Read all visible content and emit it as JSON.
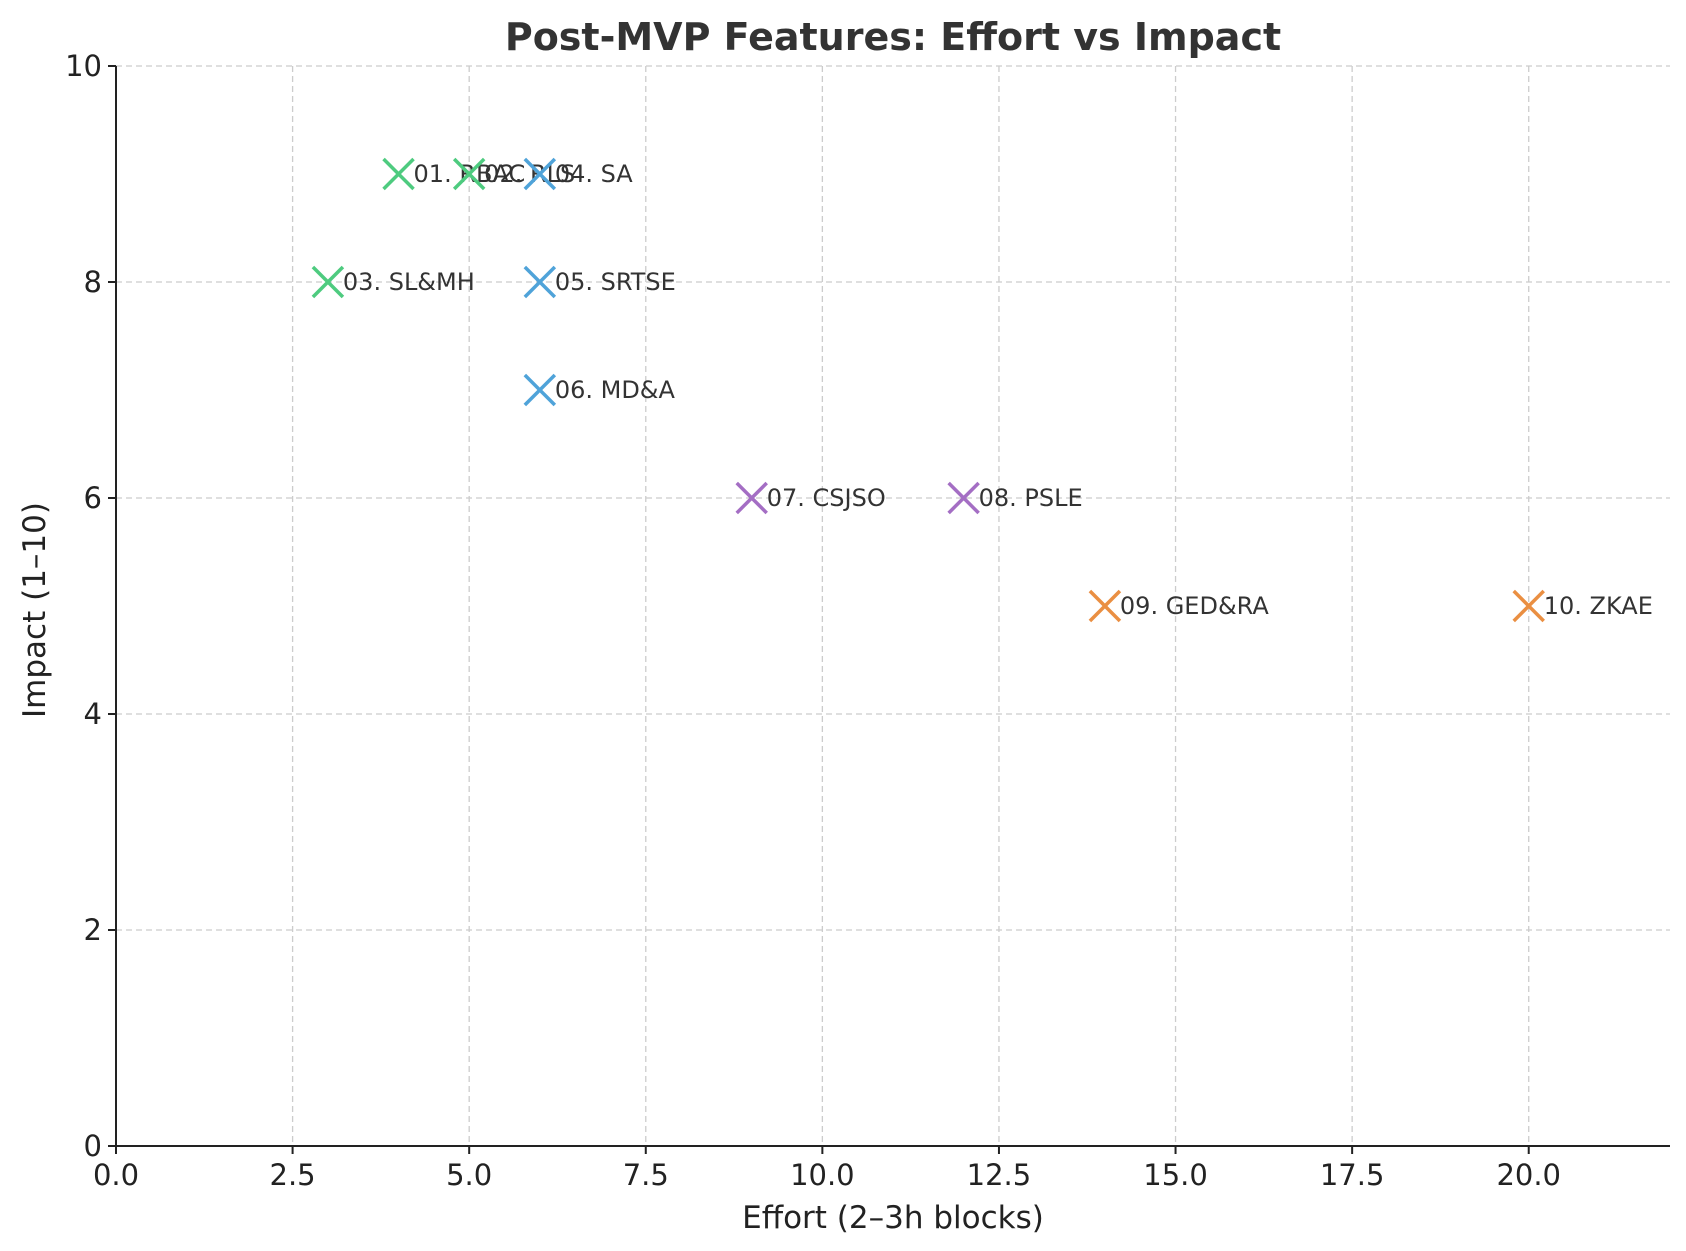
{
  "chart_data": {
    "type": "scatter",
    "title": "Post-MVP Features: Effort vs Impact",
    "xlabel": "Effort (2–3h blocks)",
    "ylabel": "Impact (1–10)",
    "xlim": [
      0,
      22
    ],
    "ylim": [
      0,
      10
    ],
    "x_ticks": [
      "0.0",
      "2.5",
      "5.0",
      "7.5",
      "10.0",
      "12.5",
      "15.0",
      "17.5",
      "20.0"
    ],
    "x_tick_values": [
      0,
      2.5,
      5,
      7.5,
      10,
      12.5,
      15,
      17.5,
      20
    ],
    "y_ticks": [
      "0",
      "2",
      "4",
      "6",
      "8",
      "10"
    ],
    "y_tick_values": [
      0,
      2,
      4,
      6,
      8,
      10
    ],
    "grid": true,
    "marker": "x",
    "points": [
      {
        "label": "01. RBAC",
        "x": 4,
        "y": 9,
        "color": "#4ecb7f"
      },
      {
        "label": "02. RLS",
        "x": 5,
        "y": 9,
        "color": "#4ecb7f"
      },
      {
        "label": "03. SL&MH",
        "x": 3,
        "y": 8,
        "color": "#4ecb7f"
      },
      {
        "label": "04. SA",
        "x": 6,
        "y": 9,
        "color": "#4fa3d9"
      },
      {
        "label": "05. SRTSE",
        "x": 6,
        "y": 8,
        "color": "#4fa3d9"
      },
      {
        "label": "06. MD&A",
        "x": 6,
        "y": 7,
        "color": "#4fa3d9"
      },
      {
        "label": "07. CSJSO",
        "x": 9,
        "y": 6,
        "color": "#a46ec4"
      },
      {
        "label": "08. PSLE",
        "x": 12,
        "y": 6,
        "color": "#a46ec4"
      },
      {
        "label": "09. GED&RA",
        "x": 14,
        "y": 5,
        "color": "#ea8f42"
      },
      {
        "label": "10. ZKAE",
        "x": 20,
        "y": 5,
        "color": "#ea8f42"
      }
    ]
  }
}
